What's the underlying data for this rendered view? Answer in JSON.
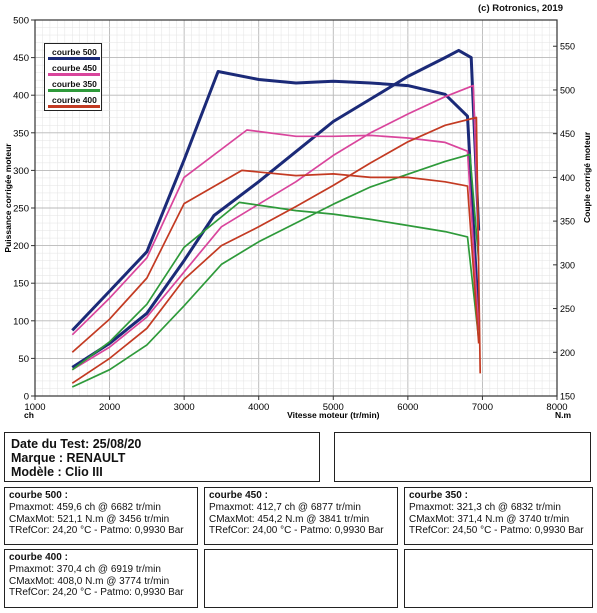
{
  "copyright": "(c) Rotronics, 2019",
  "chart_data": {
    "type": "line",
    "x_label": "Vitesse moteur (tr/min)",
    "x_unit": "N.m",
    "y_left_label": "Puissance corrigée moteur",
    "y_left_unit": "ch",
    "y_right_label": "Couple corrigé moteur",
    "x_ticks": [
      "1000",
      "2000",
      "3000",
      "4000",
      "5000",
      "6000",
      "7000",
      "8000"
    ],
    "y_left_ticks": [
      "0",
      "50",
      "100",
      "150",
      "200",
      "250",
      "300",
      "350",
      "400",
      "450",
      "500"
    ],
    "y_right_ticks": [
      "150",
      "200",
      "250",
      "300",
      "350",
      "400",
      "450",
      "500",
      "550"
    ],
    "xlim": [
      1000,
      8000
    ],
    "ylim_left": [
      0,
      500
    ],
    "ylim_right": [
      150,
      580
    ],
    "grid": true,
    "legend_position": "top-left",
    "series": [
      {
        "name": "courbe 500",
        "color": "#1b2a78",
        "power": [
          [
            1500,
            38
          ],
          [
            2000,
            70
          ],
          [
            2500,
            110
          ],
          [
            3000,
            180
          ],
          [
            3400,
            240
          ],
          [
            4000,
            285
          ],
          [
            4500,
            325
          ],
          [
            5000,
            365
          ],
          [
            5500,
            395
          ],
          [
            6000,
            425
          ],
          [
            6500,
            450
          ],
          [
            6682,
            459.6
          ],
          [
            6850,
            450
          ],
          [
            6950,
            220
          ]
        ],
        "torque": [
          [
            1500,
            225
          ],
          [
            2000,
            270
          ],
          [
            2500,
            315
          ],
          [
            3000,
            420
          ],
          [
            3456,
            521.1
          ],
          [
            4000,
            512
          ],
          [
            4500,
            508
          ],
          [
            5000,
            510
          ],
          [
            5500,
            508
          ],
          [
            6000,
            505
          ],
          [
            6500,
            495
          ],
          [
            6800,
            470
          ],
          [
            6950,
            235
          ]
        ]
      },
      {
        "name": "courbe 450",
        "color": "#d9459c",
        "power": [
          [
            1500,
            35
          ],
          [
            2000,
            65
          ],
          [
            2500,
            105
          ],
          [
            3000,
            165
          ],
          [
            3500,
            225
          ],
          [
            4000,
            255
          ],
          [
            4500,
            285
          ],
          [
            5000,
            320
          ],
          [
            5500,
            350
          ],
          [
            6000,
            375
          ],
          [
            6500,
            398
          ],
          [
            6877,
            412.7
          ],
          [
            6950,
            200
          ]
        ],
        "torque": [
          [
            1500,
            220
          ],
          [
            2000,
            262
          ],
          [
            2500,
            308
          ],
          [
            3000,
            400
          ],
          [
            3841,
            454.2
          ],
          [
            4500,
            447
          ],
          [
            5000,
            447
          ],
          [
            5500,
            448
          ],
          [
            6000,
            445
          ],
          [
            6500,
            440
          ],
          [
            6800,
            430
          ],
          [
            6950,
            225
          ]
        ]
      },
      {
        "name": "courbe 350",
        "color": "#2e9a3a",
        "power": [
          [
            1500,
            12
          ],
          [
            2000,
            35
          ],
          [
            2500,
            68
          ],
          [
            3000,
            120
          ],
          [
            3500,
            175
          ],
          [
            4000,
            205
          ],
          [
            4500,
            230
          ],
          [
            5000,
            255
          ],
          [
            5500,
            278
          ],
          [
            6000,
            295
          ],
          [
            6500,
            312
          ],
          [
            6832,
            321.3
          ],
          [
            6950,
            180
          ]
        ],
        "torque": [
          [
            1500,
            180
          ],
          [
            2000,
            212
          ],
          [
            2500,
            255
          ],
          [
            3000,
            320
          ],
          [
            3740,
            371.4
          ],
          [
            4500,
            362
          ],
          [
            5000,
            358
          ],
          [
            5500,
            352
          ],
          [
            6000,
            345
          ],
          [
            6500,
            338
          ],
          [
            6800,
            332
          ],
          [
            6950,
            215
          ]
        ]
      },
      {
        "name": "courbe 400",
        "color": "#c33a22",
        "power": [
          [
            1500,
            17
          ],
          [
            2000,
            50
          ],
          [
            2500,
            90
          ],
          [
            3000,
            155
          ],
          [
            3500,
            200
          ],
          [
            4000,
            225
          ],
          [
            4500,
            252
          ],
          [
            5000,
            280
          ],
          [
            5500,
            310
          ],
          [
            6000,
            338
          ],
          [
            6500,
            360
          ],
          [
            6919,
            370.4
          ],
          [
            6970,
            30
          ]
        ],
        "torque": [
          [
            1500,
            200
          ],
          [
            2000,
            238
          ],
          [
            2500,
            285
          ],
          [
            3000,
            370
          ],
          [
            3774,
            408
          ],
          [
            4500,
            402
          ],
          [
            5000,
            404
          ],
          [
            5500,
            400
          ],
          [
            6000,
            400
          ],
          [
            6500,
            395
          ],
          [
            6800,
            390
          ],
          [
            6950,
            210
          ]
        ]
      }
    ]
  },
  "test_info": {
    "date": "Date du Test: 25/08/20",
    "marque": "Marque   : RENAULT",
    "modele": "Modèle  : Clio III"
  },
  "curves_info": [
    {
      "title": "courbe 500 :",
      "pmax": "Pmaxmot: 459,6 ch @ 6682 tr/min",
      "cmax": "CMaxMot: 521,1 N.m @ 3456 tr/min",
      "tref": "TRefCor: 24,20 °C - Patmo: 0,9930 Bar"
    },
    {
      "title": "courbe 450 :",
      "pmax": "Pmaxmot: 412,7 ch @ 6877 tr/min",
      "cmax": "CMaxMot: 454,2 N.m @ 3841 tr/min",
      "tref": "TRefCor: 24,00 °C - Patmo: 0,9930 Bar"
    },
    {
      "title": "courbe 350 :",
      "pmax": "Pmaxmot: 321,3 ch @ 6832 tr/min",
      "cmax": "CMaxMot: 371,4 N.m @ 3740 tr/min",
      "tref": "TRefCor: 24,50 °C - Patmo: 0,9930 Bar"
    },
    {
      "title": "courbe 400 :",
      "pmax": "Pmaxmot: 370,4 ch @ 6919 tr/min",
      "cmax": "CMaxMot: 408,0 N.m @ 3774 tr/min",
      "tref": "TRefCor: 24,20 °C - Patmo: 0,9930 Bar"
    }
  ]
}
